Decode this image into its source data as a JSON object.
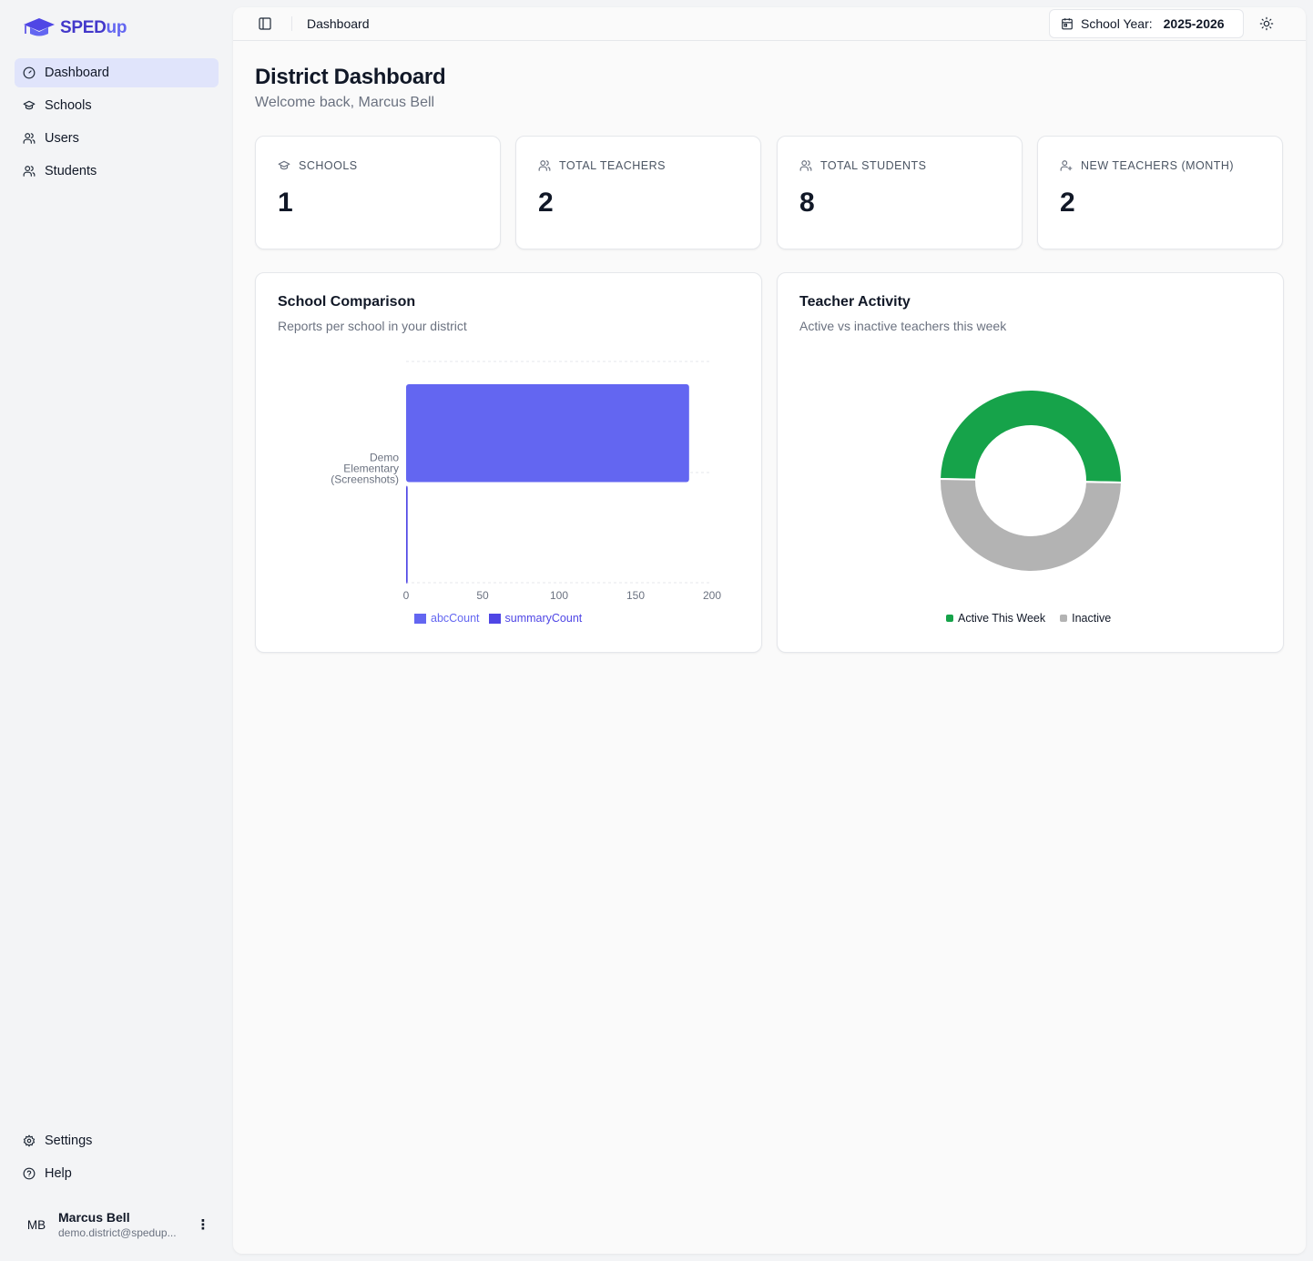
{
  "app": {
    "logo_text_a": "SPED",
    "logo_text_b": "up"
  },
  "sidebar": {
    "items": [
      {
        "label": "Dashboard",
        "icon": "gauge-icon",
        "active": true
      },
      {
        "label": "Schools",
        "icon": "graduation-cap-icon"
      },
      {
        "label": "Users",
        "icon": "users-icon"
      },
      {
        "label": "Students",
        "icon": "users-icon"
      }
    ],
    "bottom_items": [
      {
        "label": "Settings",
        "icon": "gear-icon"
      },
      {
        "label": "Help",
        "icon": "help-circle-icon"
      }
    ],
    "user": {
      "initials": "MB",
      "name": "Marcus Bell",
      "email": "demo.district@spedup..."
    }
  },
  "header": {
    "breadcrumb": "Dashboard",
    "school_year_label": "School Year:",
    "school_year_value": "2025-2026"
  },
  "page": {
    "title": "District Dashboard",
    "subtitle": "Welcome back, Marcus Bell"
  },
  "stats": [
    {
      "label": "SCHOOLS",
      "value": "1",
      "icon": "graduation-cap-icon"
    },
    {
      "label": "TOTAL TEACHERS",
      "value": "2",
      "icon": "users-icon"
    },
    {
      "label": "TOTAL STUDENTS",
      "value": "8",
      "icon": "users-icon"
    },
    {
      "label": "NEW TEACHERS (MONTH)",
      "value": "2",
      "icon": "user-plus-icon"
    }
  ],
  "school_comparison": {
    "title": "School Comparison",
    "subtitle": "Reports per school in your district"
  },
  "teacher_activity": {
    "title": "Teacher Activity",
    "subtitle": "Active vs inactive teachers this week"
  },
  "chart_data": [
    {
      "type": "bar",
      "orientation": "horizontal",
      "categories": [
        "Demo Elementary (Screenshots)"
      ],
      "series": [
        {
          "name": "abcCount",
          "values": [
            185
          ],
          "color": "#6366f1"
        },
        {
          "name": "summaryCount",
          "values": [
            1
          ],
          "color": "#4f46e5"
        }
      ],
      "xlim": [
        0,
        200
      ],
      "xticks": [
        "0",
        "50",
        "100",
        "150",
        "200"
      ],
      "grid": true,
      "legend": "bottom"
    },
    {
      "type": "pie",
      "donut": true,
      "series": [
        {
          "name": "Active This Week",
          "value": 1,
          "color": "#16a34a"
        },
        {
          "name": "Inactive",
          "value": 1,
          "color": "#b3b3b3"
        }
      ],
      "legend": "bottom"
    }
  ]
}
